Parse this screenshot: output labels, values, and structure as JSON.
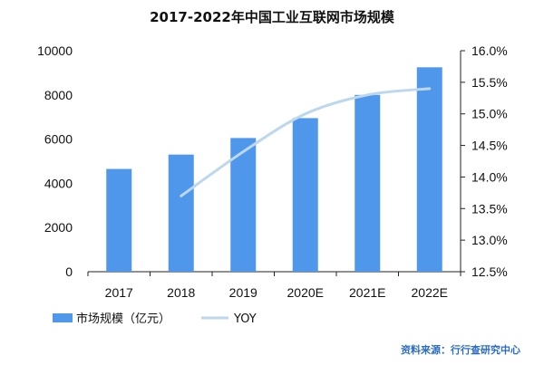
{
  "chart_data": {
    "type": "bar",
    "title": "2017-2022年中国工业互联网市场规模",
    "categories": [
      "2017",
      "2018",
      "2019",
      "2020E",
      "2021E",
      "2022E"
    ],
    "series": [
      {
        "name": "市场规模（亿元）",
        "type": "bar",
        "axis": "left",
        "values": [
          4650,
          5300,
          6050,
          6950,
          8000,
          9250
        ],
        "color": "#4f97ea"
      },
      {
        "name": "YOY",
        "type": "line",
        "axis": "right",
        "values": [
          null,
          13.7,
          14.4,
          15.0,
          15.3,
          15.4
        ],
        "color": "#bdd7ee"
      }
    ],
    "y_left": {
      "ylim": [
        0,
        10000
      ],
      "ticks": [
        "0",
        "2000",
        "4000",
        "6000",
        "8000",
        "10000"
      ]
    },
    "y_right": {
      "ylim": [
        12.5,
        16.0
      ],
      "ticks": [
        "12.5%",
        "13.0%",
        "13.5%",
        "14.0%",
        "14.5%",
        "15.0%",
        "15.5%",
        "16.0%"
      ]
    },
    "grid": false,
    "legend": "bottom-left"
  },
  "source": "资料来源：行行查研究中心"
}
